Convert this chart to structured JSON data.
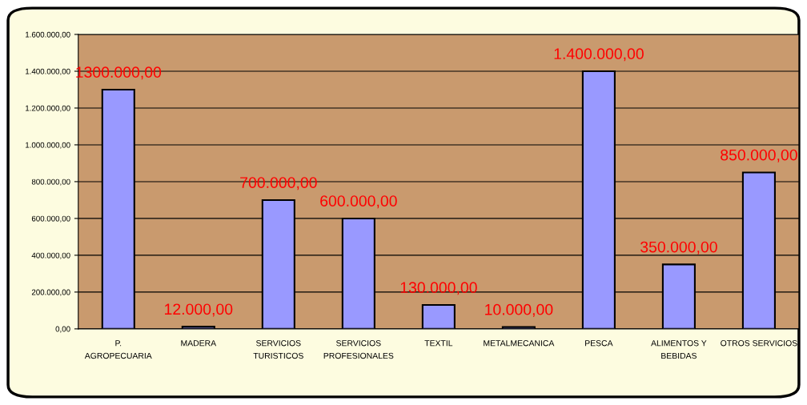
{
  "chart_data": {
    "type": "bar",
    "categories": [
      "P.\nAGROPECUARIA",
      "MADERA",
      "SERVICIOS\nTURISTICOS",
      "SERVICIOS\nPROFESIONALES",
      "TEXTIL",
      "METALMECANICA",
      "PESCA",
      "ALIMENTOS Y\nBEBIDAS",
      "OTROS SERVICIOS"
    ],
    "values": [
      1300000,
      12000,
      700000,
      600000,
      130000,
      10000,
      1400000,
      350000,
      850000
    ],
    "value_labels": [
      "1300.000,00",
      "12.000,00",
      "700.000,00",
      "600.000,00",
      "130.000,00",
      "10.000,00",
      "1.400.000,00",
      "350.000,00",
      "850.000,00"
    ],
    "color": "#9999ff",
    "ylim": [
      0,
      1600000
    ],
    "yticks": [
      {
        "value": 0,
        "label": "0,00"
      },
      {
        "value": 200000,
        "label": "200.000,00"
      },
      {
        "value": 400000,
        "label": "400.000,00"
      },
      {
        "value": 600000,
        "label": "600.000,00"
      },
      {
        "value": 800000,
        "label": "800.000,00"
      },
      {
        "value": 1000000,
        "label": "1.000.000,00"
      },
      {
        "value": 1200000,
        "label": "1.200.000,00"
      },
      {
        "value": 1400000,
        "label": "1.400.000,00"
      },
      {
        "value": 1600000,
        "label": "1.600.000,00"
      }
    ],
    "grid": "y"
  }
}
